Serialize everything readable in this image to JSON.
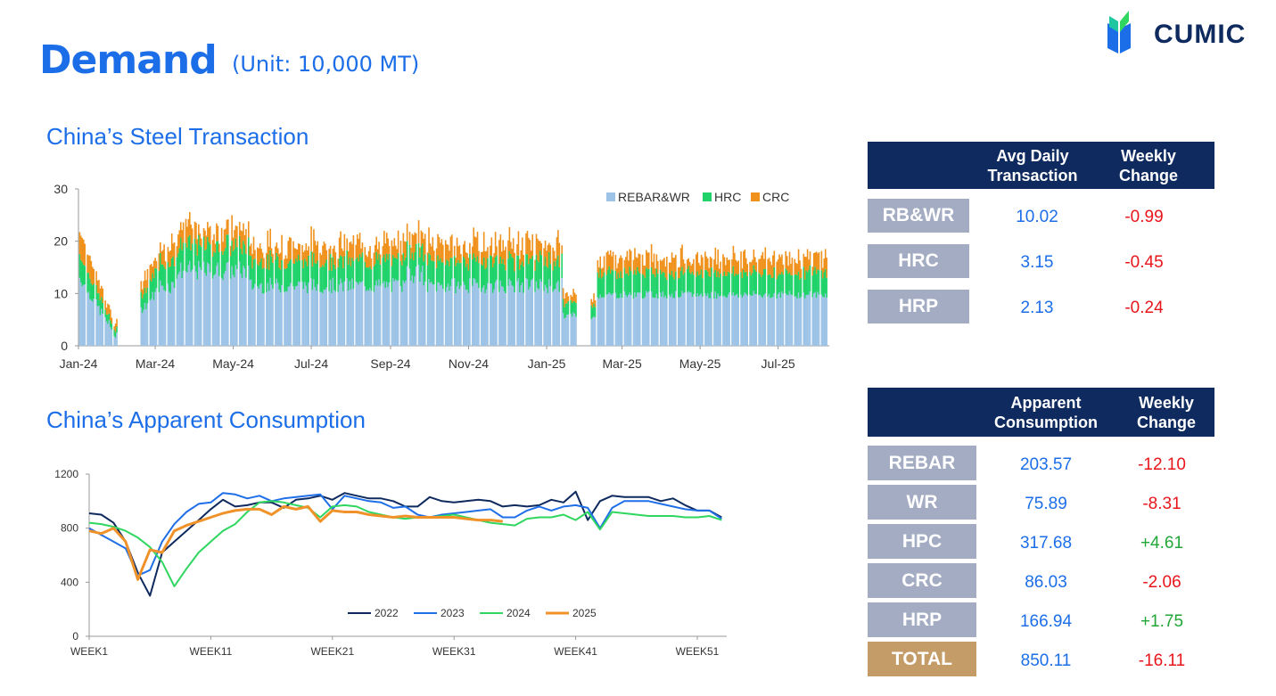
{
  "header": {
    "title": "Demand",
    "unit": "(Unit: 10,000 MT)",
    "logo_text": "CUMIC"
  },
  "colors": {
    "accent": "#1c6ee8",
    "navy": "#0e2a5f",
    "label_bg": "#a3acc2",
    "total_bg": "#c49c67",
    "rebar": "#9dc3e6",
    "hrc": "#1fd36a",
    "crc": "#f0911c",
    "y2022": "#0e2a5f",
    "y2023": "#1f6fe8",
    "y2024": "#2fd65f",
    "y2025": "#f0922a",
    "negative": "#e8161b",
    "positive": "#22a637"
  },
  "sections": {
    "transaction_title": "China’s Steel Transaction",
    "consumption_title": "China’s Apparent Consumption"
  },
  "chart_data": [
    {
      "type": "bar",
      "stacked": true,
      "title": "China’s Steel Transaction",
      "x_tick_labels": [
        "Jan-24",
        "Mar-24",
        "May-24",
        "Jul-24",
        "Sep-24",
        "Nov-24",
        "Jan-25",
        "Mar-25",
        "May-25",
        "Jul-25"
      ],
      "ylim": [
        0,
        30
      ],
      "y_ticks": [
        0,
        10,
        20,
        30
      ],
      "legend": [
        "REBAR&WR",
        "HRC",
        "CRC"
      ],
      "legend_position": "top-right",
      "series_daily_estimate": {
        "segments": [
          {
            "period": "2024-01-02 to 2024-01-31",
            "REBAR&WR": [
              13,
              1
            ],
            "HRC": [
              4,
              0.5
            ],
            "CRC": [
              4,
              0.5
            ],
            "note": "declining from ~22 to ~1 total"
          },
          {
            "period": "2024-02-19 to 2025-01-24",
            "REBAR&WR": [
              10,
              14
            ],
            "HRC": [
              4,
              5
            ],
            "CRC": [
              2,
              5
            ],
            "peak_total": 26
          },
          {
            "period": "2025-02-05 to 2025-08-08",
            "REBAR&WR": [
              9,
              10
            ],
            "HRC": [
              3,
              5
            ],
            "CRC": [
              2,
              4
            ],
            "peak_total": 19
          }
        ]
      }
    },
    {
      "type": "line",
      "title": "China’s Apparent Consumption",
      "x_tick_labels": [
        "WEEK1",
        "WEEK11",
        "WEEK21",
        "WEEK31",
        "WEEK41",
        "WEEK51"
      ],
      "ylim": [
        0,
        1200
      ],
      "y_ticks": [
        0,
        400,
        800,
        1200
      ],
      "legend_position": "bottom-right",
      "series": [
        {
          "name": "2022",
          "weeks_start": 1,
          "values": [
            910,
            900,
            840,
            700,
            470,
            300,
            620,
            700,
            780,
            860,
            940,
            1010,
            960,
            970,
            990,
            990,
            950,
            1010,
            1020,
            1040,
            1010,
            1060,
            1040,
            1020,
            1020,
            1000,
            960,
            960,
            1030,
            1000,
            990,
            1000,
            1010,
            1000,
            960,
            970,
            960,
            970,
            1010,
            990,
            1070,
            860,
            1000,
            1040,
            1030,
            1030,
            1030,
            1000,
            1020,
            970,
            930,
            930,
            880
          ]
        },
        {
          "name": "2023",
          "weeks_start": 1,
          "values": [
            800,
            750,
            700,
            650,
            450,
            490,
            700,
            830,
            920,
            980,
            990,
            1060,
            1050,
            1020,
            1040,
            1000,
            1020,
            1030,
            1040,
            1050,
            940,
            1040,
            1020,
            1000,
            990,
            950,
            960,
            900,
            880,
            900,
            910,
            920,
            930,
            940,
            880,
            880,
            930,
            960,
            930,
            960,
            970,
            950,
            800,
            950,
            1000,
            1000,
            1000,
            980,
            960,
            940,
            930,
            930,
            870
          ]
        },
        {
          "name": "2024",
          "weeks_start": 1,
          "values": [
            840,
            830,
            810,
            780,
            730,
            660,
            550,
            370,
            500,
            620,
            700,
            780,
            830,
            920,
            990,
            1000,
            990,
            970,
            950,
            880,
            960,
            970,
            960,
            920,
            900,
            880,
            870,
            880,
            880,
            890,
            900,
            880,
            860,
            840,
            830,
            820,
            870,
            880,
            880,
            900,
            860,
            920,
            790,
            920,
            910,
            900,
            890,
            890,
            890,
            880,
            880,
            890,
            860
          ]
        },
        {
          "name": "2025",
          "weeks_start": 1,
          "values": [
            780,
            760,
            800,
            700,
            420,
            640,
            620,
            780,
            820,
            850,
            880,
            910,
            930,
            940,
            940,
            900,
            960,
            940,
            960,
            850,
            930,
            920,
            920,
            900,
            890,
            880,
            890,
            880,
            880,
            880,
            880,
            870,
            860,
            860,
            850
          ]
        }
      ]
    }
  ],
  "table_transaction": {
    "headers": [
      "Avg Daily\nTransaction",
      "Weekly\nChange"
    ],
    "rows": [
      {
        "label": "RB&WR",
        "value": "10.02",
        "change": "-0.99"
      },
      {
        "label": "HRC",
        "value": "3.15",
        "change": "-0.45"
      },
      {
        "label": "HRP",
        "value": "2.13",
        "change": "-0.24"
      }
    ]
  },
  "table_consumption": {
    "headers": [
      "Apparent\nConsumption",
      "Weekly\nChange"
    ],
    "rows": [
      {
        "label": "REBAR",
        "value": "203.57",
        "change": "-12.10"
      },
      {
        "label": "WR",
        "value": "75.89",
        "change": "-8.31"
      },
      {
        "label": "HPC",
        "value": "317.68",
        "change": "+4.61"
      },
      {
        "label": "CRC",
        "value": "86.03",
        "change": "-2.06"
      },
      {
        "label": "HRP",
        "value": "166.94",
        "change": "+1.75"
      },
      {
        "label": "TOTAL",
        "value": "850.11",
        "change": "-16.11"
      }
    ]
  }
}
